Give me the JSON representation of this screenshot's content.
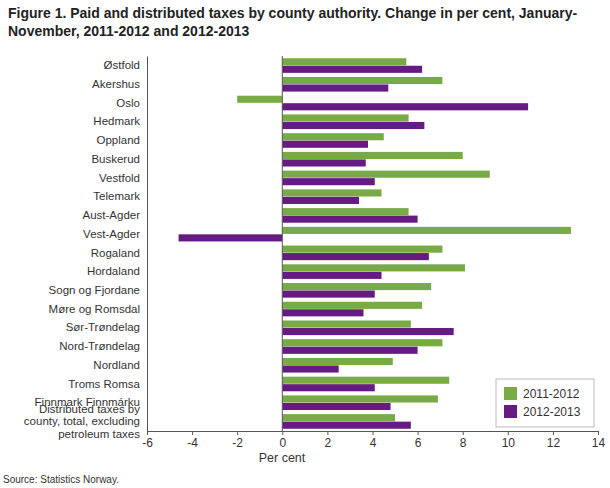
{
  "chart_data": {
    "type": "bar",
    "orientation": "horizontal",
    "title": "Figure 1. Paid and distributed taxes by county authority. Change in per cent, January-November, 2011-2012 and 2012-2013",
    "x_label": "Per cent",
    "source": "Source: Statistics Norway.",
    "categories": [
      "Østfold",
      "Akershus",
      "Oslo",
      "Hedmark",
      "Oppland",
      "Buskerud",
      "Vestfold",
      "Telemark",
      "Aust-Agder",
      "Vest-Agder",
      "Rogaland",
      "Hordaland",
      "Sogn og Fjordane",
      "Møre og Romsdal",
      "Sør-Trøndelag",
      "Nord-Trøndelag",
      "Nordland",
      "Troms Romsa",
      "Finnmark Finnmárku",
      "Distributed taxes by county, total, excluding petroleum taxes"
    ],
    "series": [
      {
        "name": "2011-2012",
        "color": "#78ab46",
        "values": [
          5.5,
          7.1,
          -2.0,
          5.6,
          4.5,
          8.0,
          9.2,
          4.4,
          5.6,
          12.8,
          7.1,
          8.1,
          6.6,
          6.2,
          5.7,
          7.1,
          4.9,
          7.4,
          6.9,
          5.0
        ]
      },
      {
        "name": "2012-2013",
        "color": "#661b82",
        "values": [
          6.2,
          4.7,
          10.9,
          6.3,
          3.8,
          3.7,
          4.1,
          3.4,
          6.0,
          -4.6,
          6.5,
          4.4,
          4.1,
          3.6,
          7.6,
          6.0,
          2.5,
          4.1,
          4.8,
          5.7
        ]
      }
    ],
    "xlim": [
      -6,
      14
    ],
    "xticks": [
      -6,
      -4,
      -2,
      0,
      2,
      4,
      6,
      8,
      10,
      12,
      14
    ],
    "grid": false,
    "legend": "lower right"
  }
}
